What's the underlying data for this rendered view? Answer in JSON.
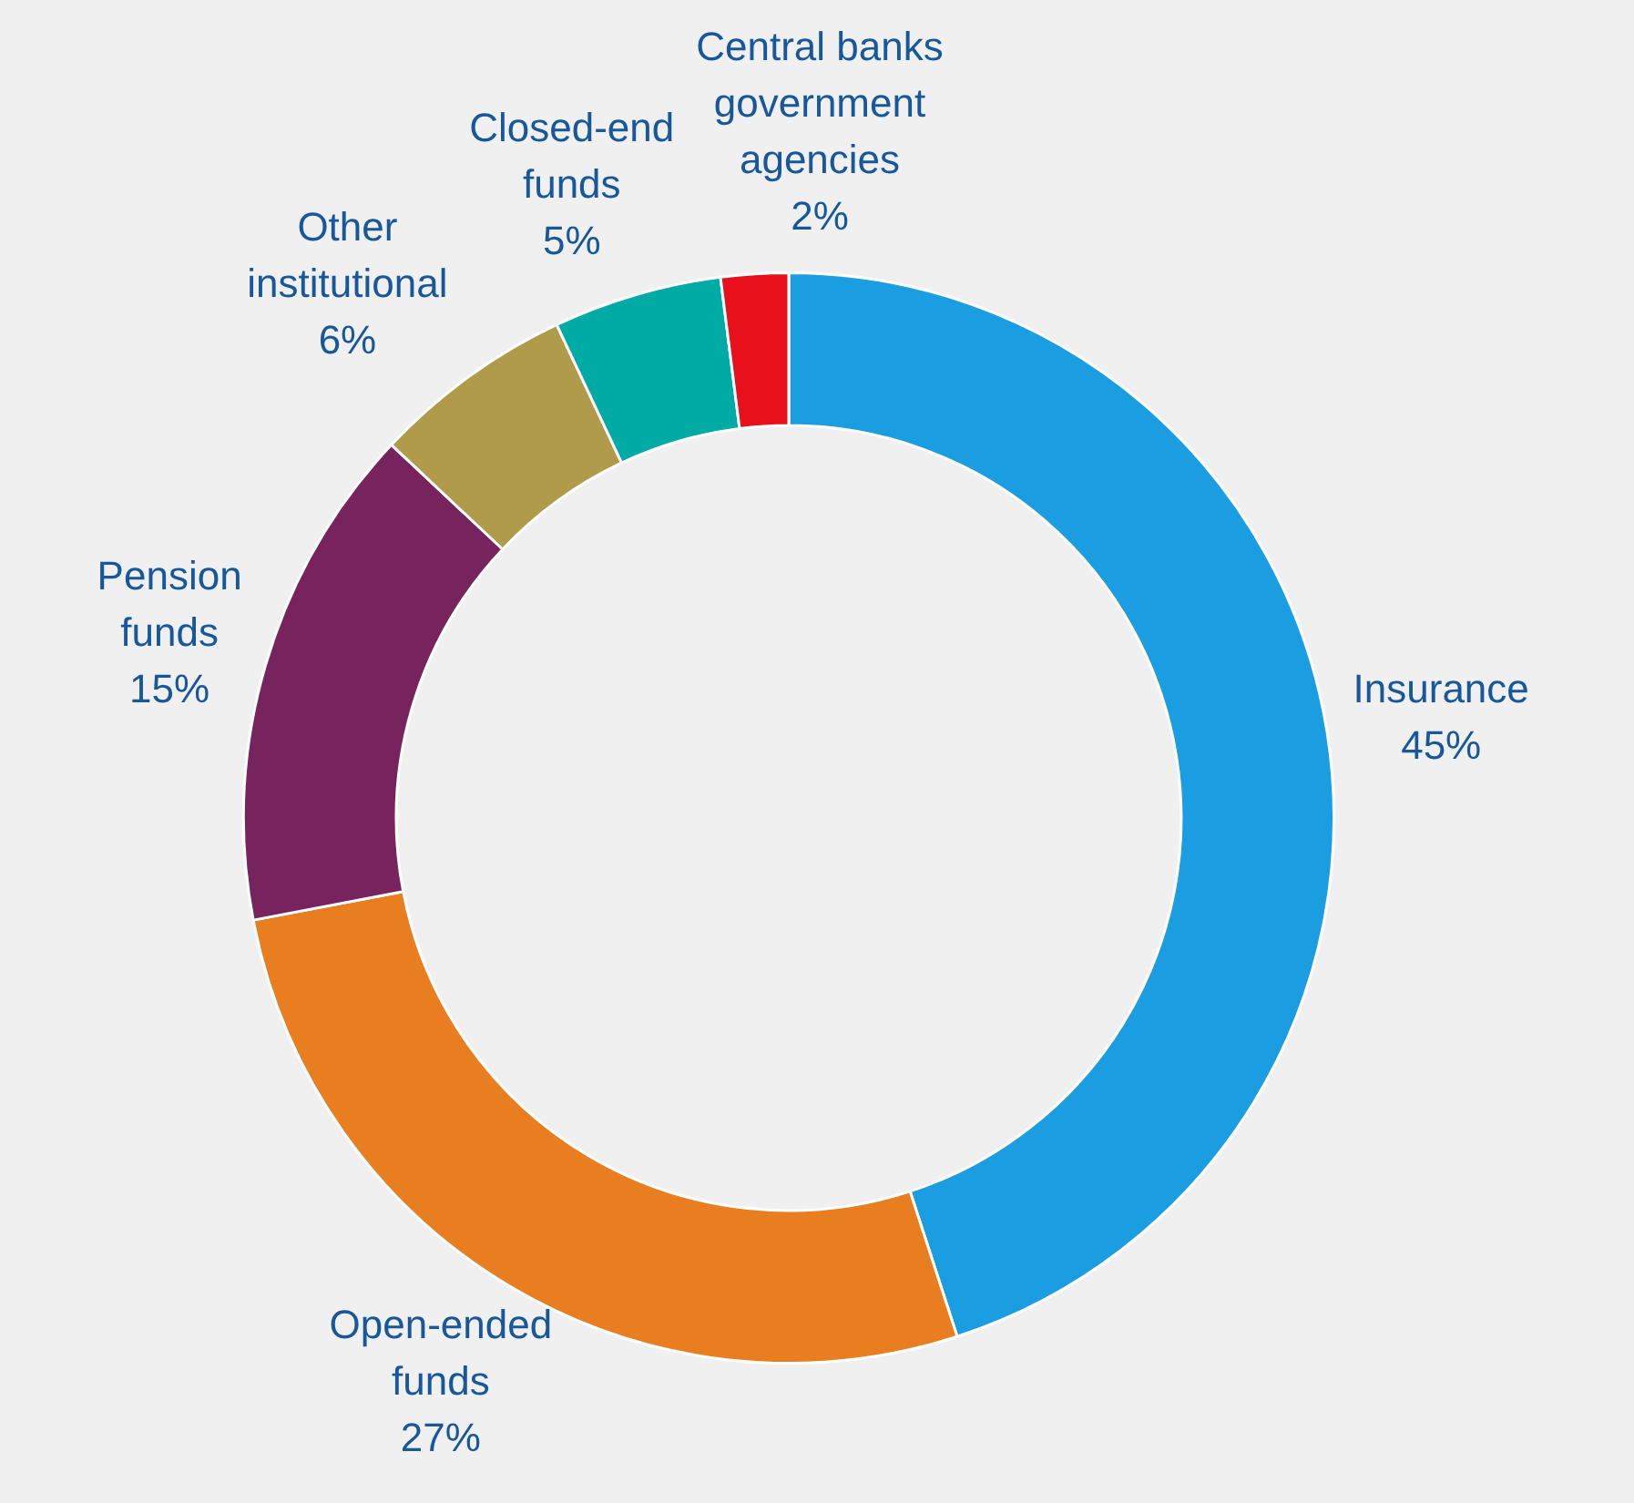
{
  "chart_data": {
    "type": "donut",
    "categories": [
      "Insurance",
      "Open-ended funds",
      "Pension funds",
      "Other institutional",
      "Closed-end funds",
      "Central banks government agencies"
    ],
    "values": [
      45,
      27,
      15,
      6,
      5,
      2
    ],
    "colors": [
      "#1b9de2",
      "#e87e1f",
      "#76235e",
      "#b09b4b",
      "#00aaa5",
      "#e8101a"
    ],
    "value_labels": [
      "45%",
      "27%",
      "15%",
      "6%",
      "5%",
      "2%"
    ],
    "legend": false
  }
}
